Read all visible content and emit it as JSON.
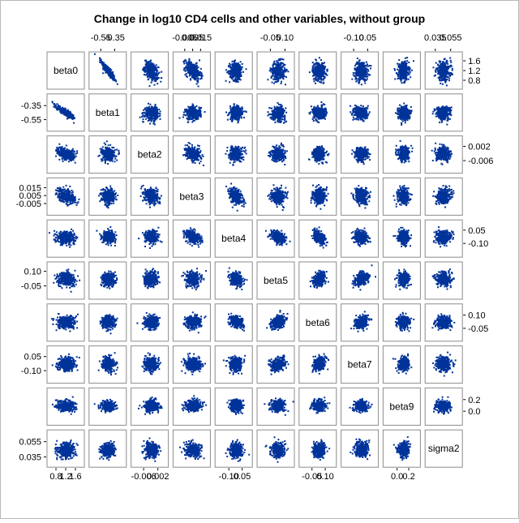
{
  "chart_data": {
    "type": "scatter",
    "subtype": "scatter-plot-matrix",
    "title": "Change in log10 CD4 cells and other variables, without group",
    "marker_color": "#003399",
    "variables": [
      {
        "name": "beta0",
        "ticks": [
          "0.8",
          "1.2",
          "1.6"
        ],
        "range": [
          0.6,
          1.8
        ]
      },
      {
        "name": "beta1",
        "ticks": [
          "-0.55",
          "-0.35"
        ],
        "range": [
          -0.66,
          -0.24
        ]
      },
      {
        "name": "beta2",
        "ticks": [
          "-0.006",
          "0.002"
        ],
        "range": [
          -0.0108,
          0.0056
        ]
      },
      {
        "name": "beta3",
        "ticks": [
          "-0.005",
          "0.005",
          "0.015"
        ],
        "range": [
          -0.0146,
          0.0222
        ]
      },
      {
        "name": "beta4",
        "ticks": [
          "-0.10",
          "0.05"
        ],
        "range": [
          -0.21,
          0.12
        ]
      },
      {
        "name": "beta5",
        "ticks": [
          "-0.05",
          "0.10"
        ],
        "range": [
          -0.145,
          0.155
        ]
      },
      {
        "name": "beta6",
        "ticks": [
          "-0.05",
          "0.10"
        ],
        "range": [
          -0.15,
          0.18
        ]
      },
      {
        "name": "beta7",
        "ticks": [
          "-0.10",
          "0.05"
        ],
        "range": [
          -0.19,
          0.12
        ]
      },
      {
        "name": "beta9",
        "ticks": [
          "0.0",
          "0.2"
        ],
        "range": [
          -0.17,
          0.33
        ]
      },
      {
        "name": "sigma2",
        "ticks": [
          "0.035",
          "0.055"
        ],
        "range": [
          0.027,
          0.065
        ]
      }
    ],
    "axis_label_positions": {
      "top": [
        "beta1",
        "beta3",
        "beta5",
        "beta7",
        "sigma2"
      ],
      "bottom": [
        "beta0",
        "beta2",
        "beta4",
        "beta6",
        "beta9"
      ],
      "left": [
        "beta1",
        "beta3",
        "beta5",
        "beta7",
        "sigma2"
      ],
      "right": [
        "beta0",
        "beta2",
        "beta4",
        "beta6",
        "beta9"
      ]
    },
    "correlations": [
      {
        "pair": [
          "beta0",
          "beta1"
        ],
        "r": -0.9
      },
      {
        "pair": [
          "beta0",
          "beta2"
        ],
        "r": -0.45
      },
      {
        "pair": [
          "beta0",
          "beta3"
        ],
        "r": -0.45
      },
      {
        "pair": [
          "beta1",
          "beta2"
        ],
        "r": 0.1
      },
      {
        "pair": [
          "beta2",
          "beta3"
        ],
        "r": -0.2
      },
      {
        "pair": [
          "beta3",
          "beta4"
        ],
        "r": -0.4
      },
      {
        "pair": [
          "beta4",
          "beta5"
        ],
        "r": -0.3
      },
      {
        "pair": [
          "beta4",
          "beta6"
        ],
        "r": -0.35
      },
      {
        "pair": [
          "beta5",
          "beta6"
        ],
        "r": 0.35
      },
      {
        "pair": [
          "beta5",
          "beta7"
        ],
        "r": 0.3
      },
      {
        "pair": [
          "beta6",
          "beta7"
        ],
        "r": 0.3
      }
    ],
    "legend": "none",
    "grid": false
  }
}
